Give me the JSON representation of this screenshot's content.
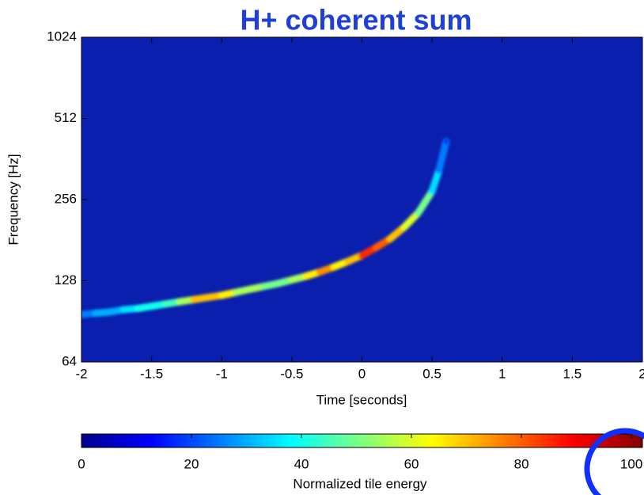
{
  "chart_data": {
    "type": "spectrogram",
    "title": "H+ coherent sum",
    "xlabel": "Time [seconds]",
    "ylabel": "Frequency [Hz]",
    "x": [
      -2.0,
      -1.9,
      -1.8,
      -1.7,
      -1.6,
      -1.5,
      -1.4,
      -1.3,
      -1.2,
      -1.1,
      -1.0,
      -0.9,
      -0.8,
      -0.7,
      -0.6,
      -0.5,
      -0.4,
      -0.3,
      -0.2,
      -0.1,
      0.0,
      0.1,
      0.2,
      0.3,
      0.4,
      0.5,
      0.55,
      0.6
    ],
    "values": [
      96,
      97,
      98,
      100,
      101,
      103,
      105,
      107,
      109,
      111,
      113,
      116,
      119,
      122,
      125,
      129,
      133,
      138,
      144,
      151,
      159,
      170,
      183,
      202,
      228,
      275,
      330,
      420
    ],
    "energy": [
      25,
      30,
      30,
      35,
      40,
      40,
      45,
      55,
      70,
      70,
      65,
      55,
      55,
      50,
      50,
      55,
      65,
      75,
      65,
      70,
      85,
      80,
      70,
      60,
      50,
      35,
      25,
      15
    ],
    "xlim": [
      -2,
      2
    ],
    "xticks": [
      -2,
      -1.5,
      -1,
      -0.5,
      0,
      0.5,
      1,
      1.5,
      2
    ],
    "ylim": [
      64,
      1024
    ],
    "yticks": [
      64,
      128,
      256,
      512,
      1024
    ],
    "yscale": "log",
    "colorbar": {
      "label": "Normalized tile energy",
      "clim": [
        0,
        102
      ],
      "ticks": [
        0,
        20,
        40,
        60,
        80,
        100
      ]
    }
  }
}
